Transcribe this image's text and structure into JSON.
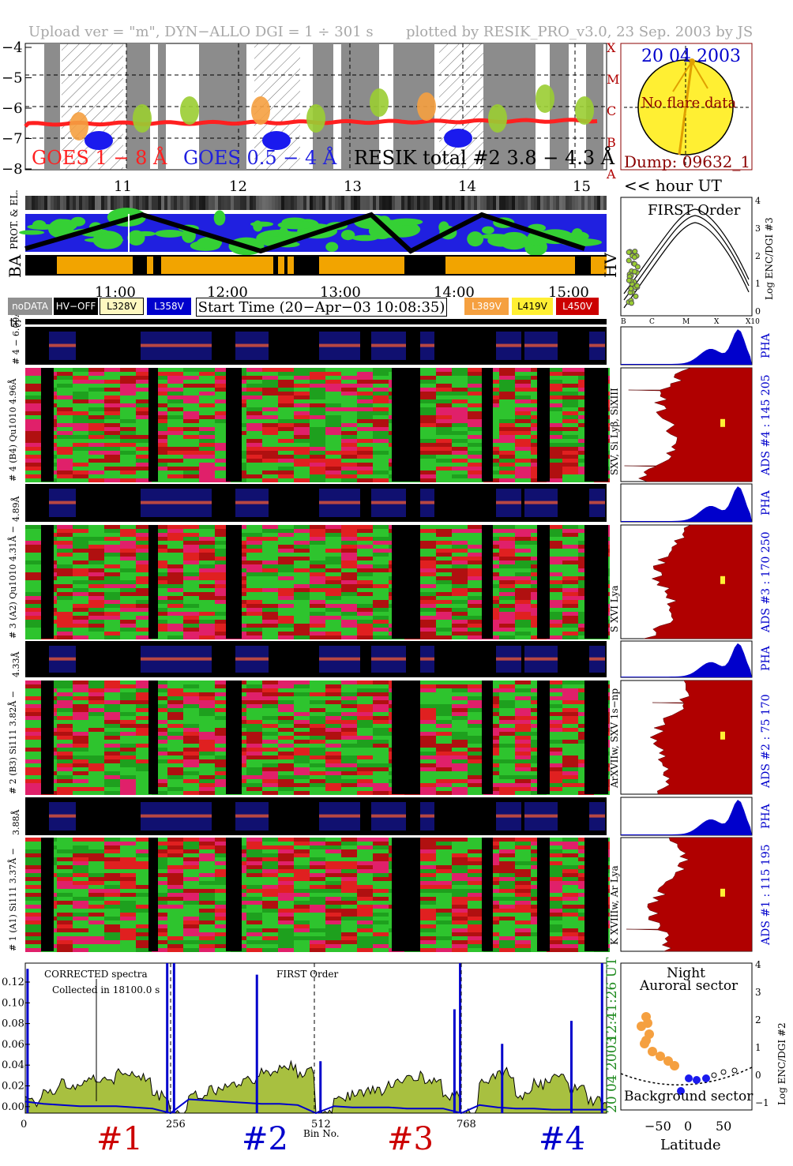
{
  "header": {
    "left": "Upload ver = \"m\", DYN−ALLO DGI =   1 ÷ 301 s",
    "right": "plotted by RESIK_PRO_v3.0, 23 Sep. 2003 by JS"
  },
  "goes_panel": {
    "y_ticks": [
      "−4",
      "−5",
      "−6",
      "−7",
      "−8"
    ],
    "class_labels": [
      "X",
      "M",
      "C",
      "B",
      "A"
    ],
    "legend_goes_long": "GOES 1 − 8 Å",
    "legend_goes_short": "GOES 0.5 − 4 Å",
    "legend_resik": "RESIK total #2  3.8 − 4.3 Å"
  },
  "sun_panel": {
    "date": "20 04 2003",
    "flare": "No flare data",
    "dump": "Dump: 09632_1"
  },
  "hour_axis": {
    "ticks": [
      "11",
      "12",
      "13",
      "14",
      "15"
    ],
    "label": "<< hour UT"
  },
  "strip_labels": {
    "prot": "PROT. & EL.",
    "ba": "BA",
    "hv": "HV"
  },
  "time_axis": {
    "ticks": [
      "11:00",
      "12:00",
      "13:00",
      "14:00",
      "15:00"
    ]
  },
  "status_legend": {
    "nodata": "noDATA",
    "hvoff": "HV−OFF",
    "l328": "L328V",
    "l358": "L358V",
    "start_time": "Start Time (20−Apr−03 10:08:35)",
    "l389": "L389V",
    "l419": "L419V",
    "l450": "L450V"
  },
  "first_order": {
    "title": "FIRST Order",
    "ylabel": "Log ENC/DGI #3",
    "y_ticks": [
      "4",
      "3",
      "2",
      "1",
      "0"
    ],
    "x_ticks": [
      "B",
      "C",
      "M",
      "X",
      "X10"
    ]
  },
  "channel_labels": {
    "tc": "tc",
    "ch4_pha": "# 4 − 6.09Å",
    "ch4": "# 4 (B4) Qu1010 4.96Å",
    "ch3_pha": "4.89Å",
    "ch3": "# 3 (A2) Qu1010  4.31Å −",
    "ch2_pha": "4.33Å",
    "ch2": "# 2 (B3) Si111  3.82Å −",
    "ch1_pha": "3.88Å",
    "ch1": "# 1 (A1) Si111  3.37Å −"
  },
  "ads_labels": {
    "pha": "PHA",
    "ads4": "ADS #4 :   145 205",
    "ads4_lines": "SXV, Si Lyβ, SiXIII",
    "ads3": "ADS #3 :   170 250",
    "ads3_lines": "S XVI Lya",
    "ads2": "ADS #2 :    75 170",
    "ads2_lines": "ArXVIIw, SXV 1s−np",
    "ads1": "ADS #1 :   115 195",
    "ads1_lines": "K XVIIIw, Ar Lya"
  },
  "spectrum": {
    "y_ticks": [
      "0.12",
      "0.10",
      "0.08",
      "0.06",
      "0.04",
      "0.02",
      "0.00"
    ],
    "text1": "CORRECTED spectra",
    "text2": "Collected in 18100.0 s",
    "text3": "FIRST Order",
    "x_ticks": [
      "0",
      "256",
      "512",
      "768"
    ],
    "xlabel": "Bin No.",
    "right_time": "12:41:26 UT",
    "right_date": "20 04 2003"
  },
  "sections": [
    "#1",
    "#2",
    "#3",
    "#4"
  ],
  "colors": {
    "red": "#cc0000",
    "blue": "#0000cc",
    "green": "#1e8a1e",
    "goes_long": "#ff2020",
    "goes_short": "#2020e0"
  },
  "latitude_panel": {
    "title1": "Night",
    "title2": "Auroral sector",
    "bottom": "Background sector",
    "xlabel": "Latitude",
    "ylabel": "Log ENC/DGI #2",
    "x_ticks": [
      "−50",
      "0",
      "50"
    ],
    "y_ticks": [
      "4",
      "3",
      "2",
      "1",
      "0",
      "−1"
    ]
  },
  "chart_data": {
    "type": "line",
    "title": "CORRECTED spectra",
    "xlabel": "Bin No.",
    "xlim": [
      0,
      1024
    ],
    "ylim": [
      0,
      0.13
    ],
    "x": [
      0,
      32,
      64,
      96,
      128,
      160,
      192,
      224,
      256,
      288,
      320,
      352,
      384,
      416,
      448,
      480,
      512,
      544,
      576,
      608,
      640,
      672,
      704,
      736,
      768,
      800,
      832,
      864,
      896,
      928,
      960,
      992,
      1024
    ],
    "series": [
      {
        "values": [
          0.01,
          0.02,
          0.025,
          0.028,
          0.03,
          0.035,
          0.03,
          0.015,
          0.0,
          0.015,
          0.02,
          0.025,
          0.03,
          0.035,
          0.04,
          0.035,
          0.0,
          0.015,
          0.018,
          0.02,
          0.025,
          0.032,
          0.028,
          0.015,
          0.0,
          0.03,
          0.035,
          0.015,
          0.025,
          0.03,
          0.02,
          0.01,
          0.005
        ]
      },
      {
        "values": [
          0.01,
          0.008,
          0.007,
          0.006,
          0.006,
          0.006,
          0.005,
          0.004,
          0.0,
          0.012,
          0.011,
          0.01,
          0.009,
          0.008,
          0.008,
          0.007,
          0.0,
          0.006,
          0.005,
          0.005,
          0.005,
          0.004,
          0.004,
          0.004,
          0.0,
          0.007,
          0.005,
          0.004,
          0.004,
          0.003,
          0.003,
          0.003,
          0.003
        ]
      }
    ]
  }
}
